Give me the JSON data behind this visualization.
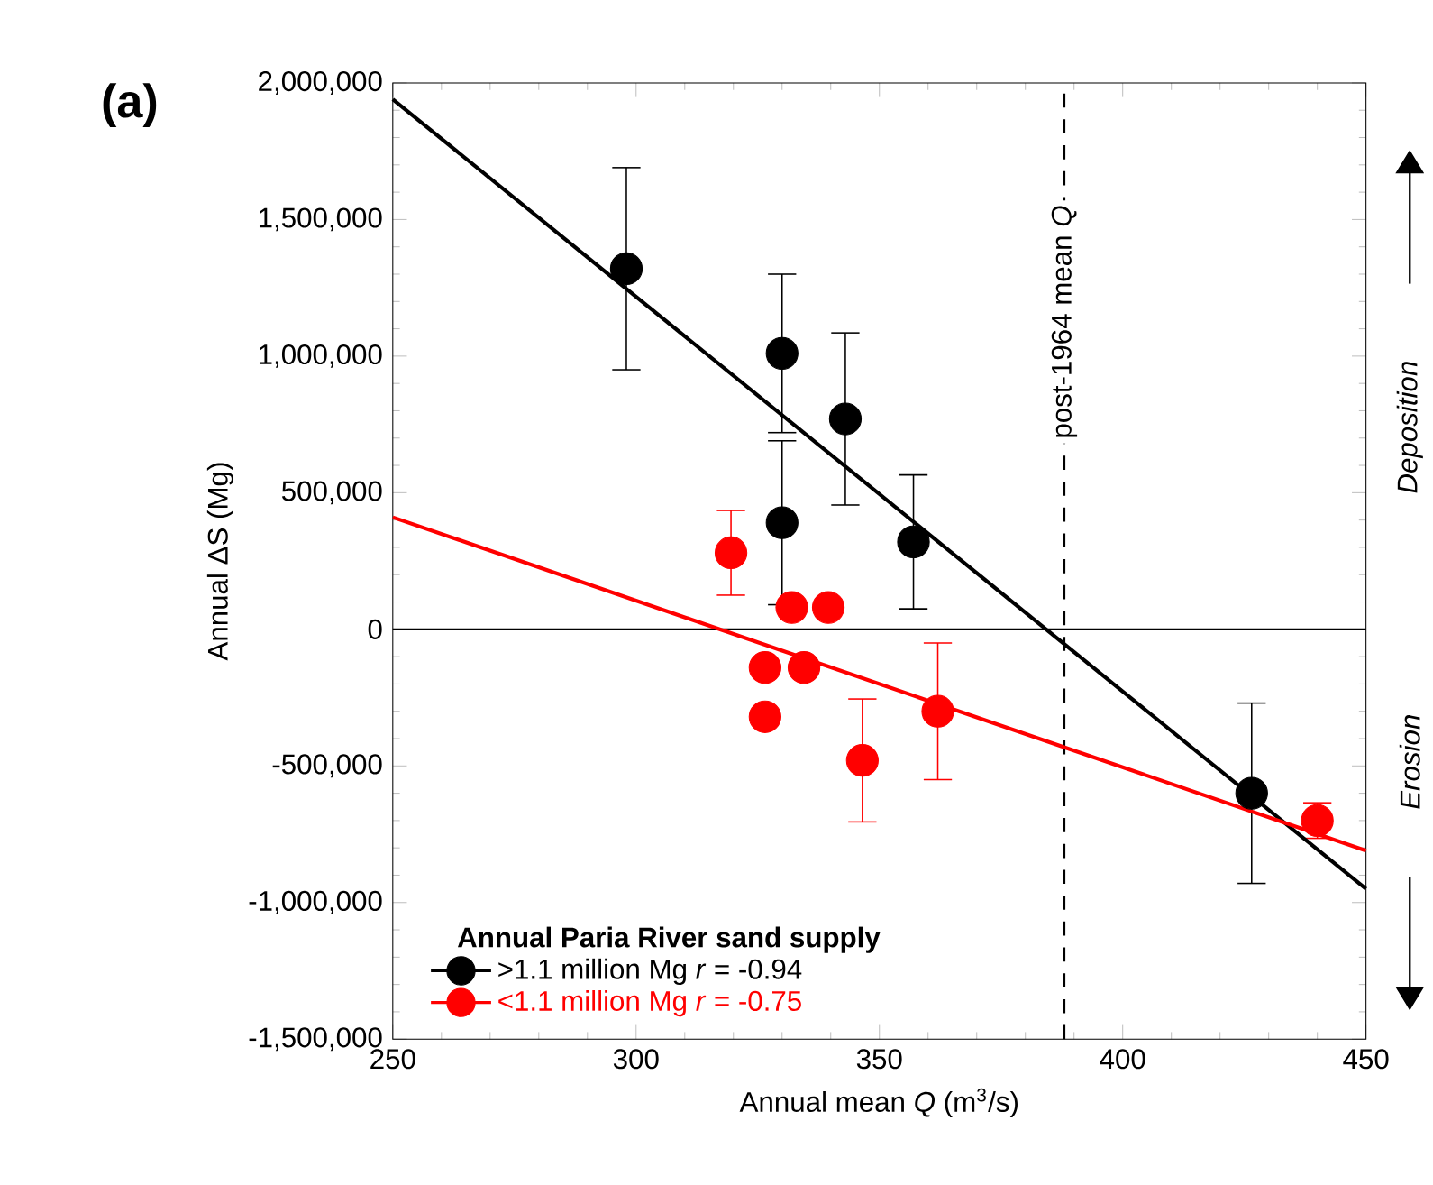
{
  "chart_data": {
    "type": "scatter",
    "xlabel": "Annual mean *Q* (m$^{3}$/s)",
    "ylabel": "Annual ΔS (Mg)",
    "legend_title": "Annual Paria River sand supply",
    "annotations": [
      "(a)",
      "Deposition",
      "Erosion"
    ],
    "series": [
      {
        "name": ">1.1 million Mg   *r* = -0.94",
        "color": "#000000",
        "x": [
          298,
          330,
          343,
          330,
          357,
          426.5
        ],
        "values": [
          1320000,
          1010000,
          770000,
          390000,
          320000,
          -600000
        ],
        "errors": [
          370000,
          290000,
          315000,
          300000,
          245000,
          330000
        ]
      },
      {
        "name": "<1.1 million Mg   *r* = -0.75",
        "color": "#ff0000",
        "x": [
          319.5,
          332,
          339.5,
          326.5,
          326.5,
          334.5,
          346.5,
          362,
          440
        ],
        "values": [
          280000,
          80000,
          80000,
          -140000,
          -320000,
          -140000,
          -480000,
          -300000,
          -700000
        ],
        "errors": [
          155000,
          null,
          null,
          null,
          null,
          null,
          225000,
          250000,
          65000
        ]
      },
      {
        "type": "line",
        "marker": "none",
        "color": "#000000",
        "x": [
          250,
          450
        ],
        "values": [
          1940000,
          -950000
        ]
      },
      {
        "type": "line",
        "marker": "none",
        "color": "#ff0000",
        "x": [
          250,
          450
        ],
        "values": [
          410000,
          -810000
        ]
      }
    ],
    "xlim": [
      250,
      450
    ],
    "xticks": [
      250,
      300,
      350,
      400,
      450
    ],
    "ylim": [
      -1500000,
      2000000
    ],
    "yticks": [
      {
        "value": -1500000,
        "label": "-1,500,000"
      },
      {
        "value": -1000000,
        "label": "-1,000,000"
      },
      {
        "value": -500000,
        "label": "-500,000"
      },
      {
        "value": 0,
        "label": "0"
      },
      {
        "value": 500000,
        "label": "500,000"
      },
      {
        "value": 1000000,
        "label": "1,000,000"
      },
      {
        "value": 1500000,
        "label": "1,500,000"
      },
      {
        "value": 2000000,
        "label": "2,000,000"
      }
    ],
    "ref_lines": [
      {
        "axis": "x",
        "value": 388,
        "label": "post-1964 mean *Q*",
        "line_style": "dashed"
      },
      {
        "axis": "y",
        "value": 0,
        "line_style": "solid"
      }
    ],
    "grid": false,
    "legend": "bottom left",
    "marker": "circle"
  }
}
